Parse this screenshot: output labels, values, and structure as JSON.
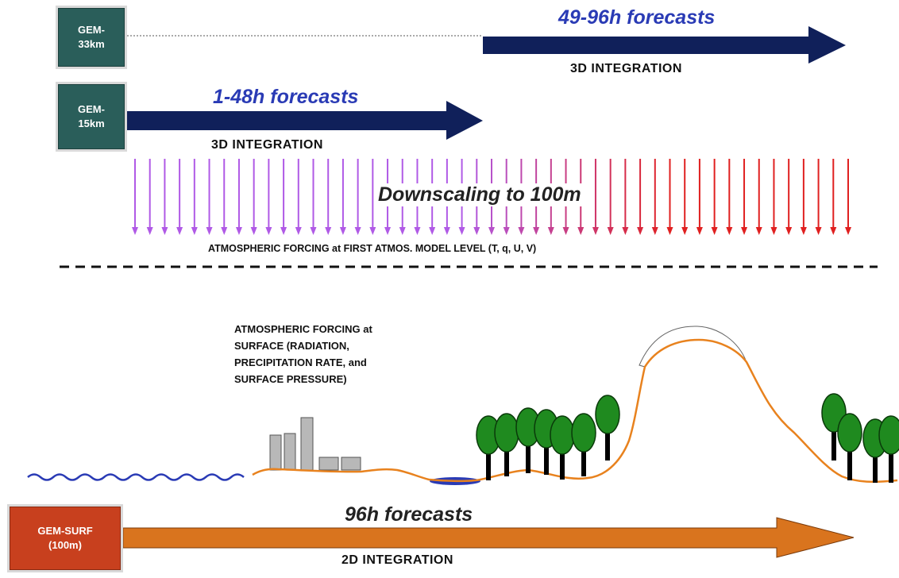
{
  "models": {
    "gem_33km": {
      "line1": "GEM-",
      "line2": "33km"
    },
    "gem_15km": {
      "line1": "GEM-",
      "line2": "15km"
    },
    "gem_surf": {
      "line1": "GEM-SURF",
      "line2": "(100m)"
    }
  },
  "arrows": {
    "top": {
      "label": "49-96h forecasts",
      "sublabel": "3D INTEGRATION"
    },
    "middle": {
      "label": "1-48h forecasts",
      "sublabel": "3D INTEGRATION"
    },
    "bottom": {
      "label": "96h forecasts",
      "sublabel": "2D INTEGRATION"
    }
  },
  "downscaling": {
    "label": "Downscaling to 100m"
  },
  "forcing_model_level": "ATMOSPHERIC FORCING at FIRST ATMOS. MODEL LEVEL (T, q, U, V)",
  "forcing_surface": {
    "line1": "ATMOSPHERIC FORCING at",
    "line2": "SURFACE (RADIATION,",
    "line3": "PRECIPITATION RATE, and",
    "line4": "SURFACE PRESSURE)"
  },
  "colors": {
    "navy": "#10205a",
    "teal": "#2a5e5a",
    "surf_red": "#c8401e",
    "orange": "#d9741e",
    "purple": "#b05ae6",
    "red": "#e02020",
    "terrain": "#e8821e",
    "water": "#2a3bb5",
    "tree": "#1f8a1f"
  }
}
